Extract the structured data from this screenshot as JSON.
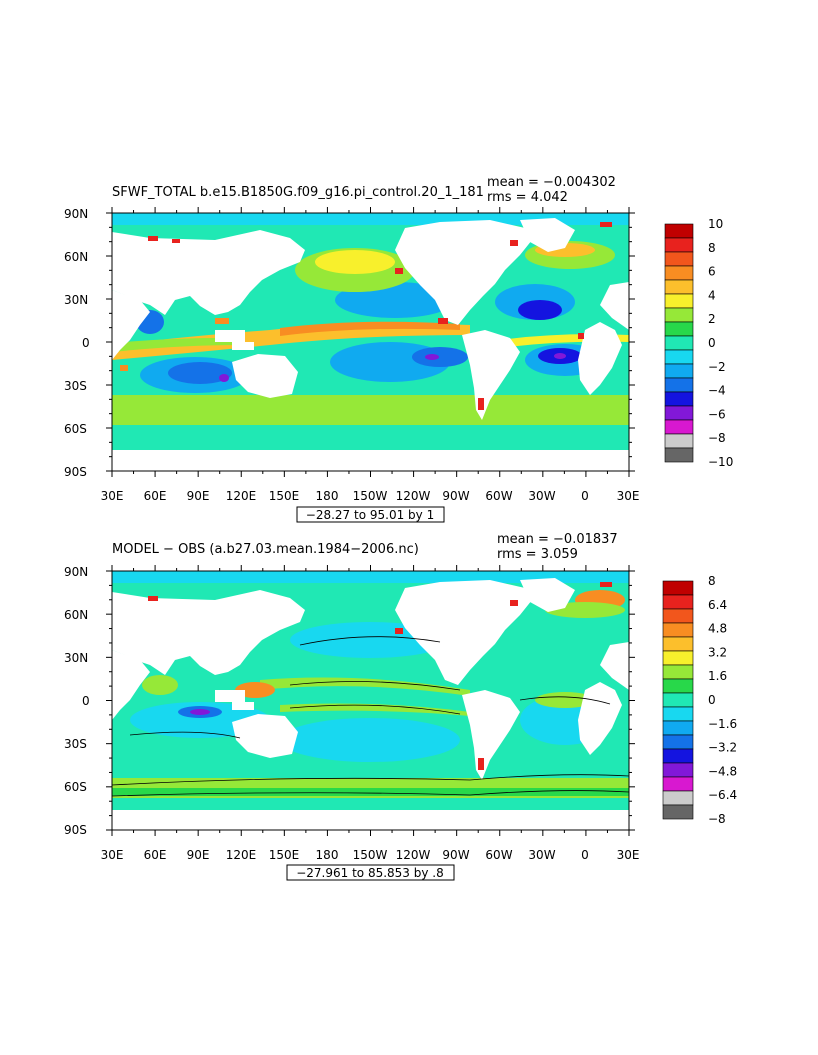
{
  "panels": [
    {
      "title": "SFWF_TOTAL b.e15.B1850G.f09_g16.pi_control.20_1_181",
      "mean_text": "mean = −0.004302",
      "rms_text": "rms = 4.042",
      "range_text": "−28.27 to 95.01 by 1",
      "colorbar": {
        "labels": [
          "10",
          "8",
          "6",
          "4",
          "2",
          "0",
          "−2",
          "−4",
          "−6",
          "−8",
          "−10"
        ],
        "colors": [
          "#c00000",
          "#e8221e",
          "#f2561c",
          "#f88d22",
          "#fcbf2c",
          "#f8f02c",
          "#96e838",
          "#28d84a",
          "#20e8b4",
          "#18d8f0",
          "#10aaf0",
          "#1472e8",
          "#1414e0",
          "#8218d8",
          "#d818d0",
          "#cccccc",
          "#666666"
        ]
      }
    },
    {
      "title": "MODEL − OBS (a.b27.03.mean.1984−2006.nc)",
      "mean_text": "mean = −0.01837",
      "rms_text": "rms = 3.059",
      "range_text": "−27.961 to 85.853 by .8",
      "colorbar": {
        "labels": [
          "8",
          "6.4",
          "4.8",
          "3.2",
          "1.6",
          "0",
          "−1.6",
          "−3.2",
          "−4.8",
          "−6.4",
          "−8"
        ],
        "colors": [
          "#c00000",
          "#e8221e",
          "#f2561c",
          "#f88d22",
          "#fcbf2c",
          "#f8f02c",
          "#96e838",
          "#28d84a",
          "#20e8b4",
          "#18d8f0",
          "#10aaf0",
          "#1472e8",
          "#1414e0",
          "#8218d8",
          "#d818d0",
          "#cccccc",
          "#666666"
        ]
      }
    }
  ],
  "axes": {
    "lat_labels": [
      "90N",
      "60N",
      "30N",
      "0",
      "30S",
      "60S",
      "90S"
    ],
    "lon_labels": [
      "30E",
      "60E",
      "90E",
      "120E",
      "150E",
      "180",
      "150W",
      "120W",
      "90W",
      "60W",
      "30W",
      "0",
      "30E"
    ]
  }
}
